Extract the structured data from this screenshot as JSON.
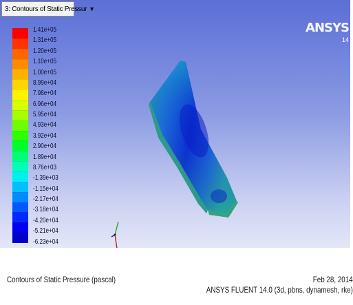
{
  "window_selector": {
    "label": "3: Contours of Static Pressur",
    "arrow": "▼"
  },
  "legend": {
    "labels": [
      "1.41e+05",
      "1.31e+05",
      "1.20e+05",
      "1.10e+05",
      "1.00e+05",
      "8.99e+04",
      "7.98e+04",
      "6.96e+04",
      "5.95e+04",
      "4.93e+04",
      "3.92e+04",
      "2.90e+04",
      "1.89e+04",
      "8.76e+03",
      "-1.39e+03",
      "-1.15e+04",
      "-2.17e+04",
      "-3.18e+04",
      "-4.20e+04",
      "-5.21e+04",
      "-6.23e+04"
    ],
    "colors": [
      "#ff0000",
      "#ff3300",
      "#ff6600",
      "#ff8c00",
      "#ffb000",
      "#ffd400",
      "#fff200",
      "#d8ff00",
      "#a8ff00",
      "#6cff00",
      "#2cff00",
      "#00ff2a",
      "#00ff72",
      "#00ffb8",
      "#00f0f0",
      "#00c0ff",
      "#008cff",
      "#0058ff",
      "#0028ff",
      "#0000f0",
      "#0000cc"
    ]
  },
  "branding": {
    "logo": "ANSYS",
    "version": "14"
  },
  "footer": {
    "title": "Contours of Static Pressure (pascal)",
    "date": "Feb 28, 2014",
    "solver": "ANSYS FLUENT 14.0 (3d, pbns, dynamesh, rke)"
  }
}
